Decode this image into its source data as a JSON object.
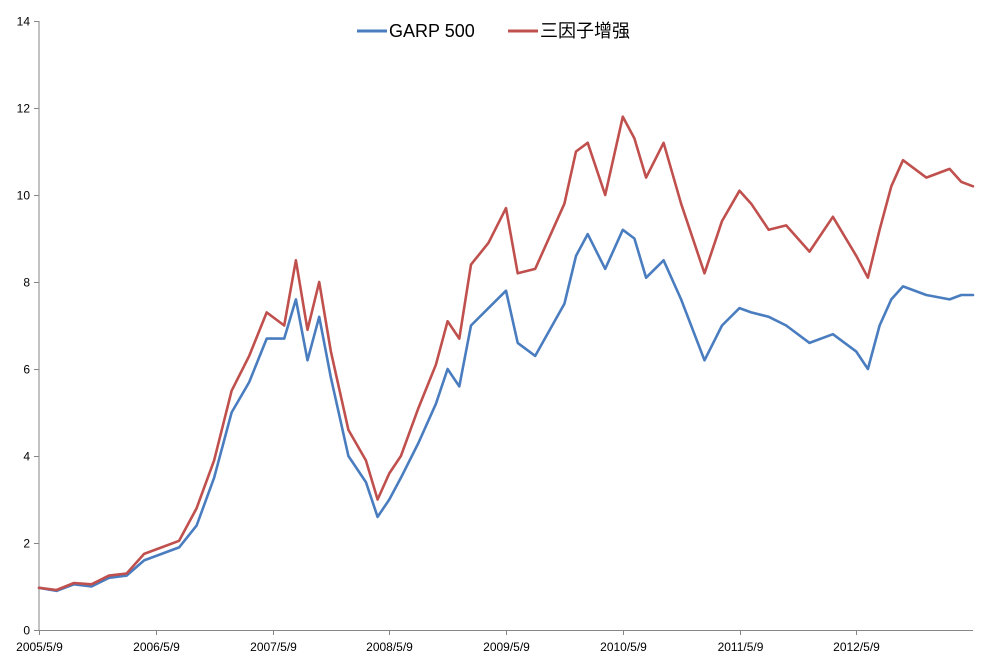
{
  "chart_data": {
    "type": "line",
    "title": "",
    "xlabel": "",
    "ylabel": "",
    "ylim": [
      0,
      14
    ],
    "yticks": [
      0,
      2,
      4,
      6,
      8,
      10,
      12,
      14
    ],
    "xticks": [
      "2005/5/9",
      "2006/5/9",
      "2007/5/9",
      "2008/5/9",
      "2009/5/9",
      "2010/5/9",
      "2011/5/9",
      "2012/5/9"
    ],
    "x_range_years": [
      0,
      8
    ],
    "legend_position": "top-center",
    "grid": false,
    "series": [
      {
        "name": "GARP 500",
        "color": "#4a7dbf",
        "t": [
          0.0,
          0.15,
          0.3,
          0.45,
          0.6,
          0.75,
          0.9,
          1.05,
          1.2,
          1.35,
          1.5,
          1.65,
          1.8,
          1.95,
          2.1,
          2.2,
          2.3,
          2.4,
          2.5,
          2.65,
          2.8,
          2.9,
          3.0,
          3.1,
          3.25,
          3.4,
          3.5,
          3.6,
          3.7,
          3.85,
          4.0,
          4.1,
          4.25,
          4.5,
          4.6,
          4.7,
          4.85,
          5.0,
          5.1,
          5.2,
          5.35,
          5.5,
          5.7,
          5.85,
          6.0,
          6.1,
          6.25,
          6.4,
          6.6,
          6.8,
          7.0,
          7.1,
          7.2,
          7.3,
          7.4,
          7.6,
          7.8,
          7.9,
          8.0
        ],
        "values": [
          0.97,
          0.9,
          1.05,
          1.0,
          1.2,
          1.25,
          1.6,
          1.75,
          1.9,
          2.4,
          3.5,
          5.0,
          5.7,
          6.7,
          6.7,
          7.6,
          6.2,
          7.2,
          5.8,
          4.0,
          3.4,
          2.6,
          3.0,
          3.5,
          4.3,
          5.2,
          6.0,
          5.6,
          7.0,
          7.4,
          7.8,
          6.6,
          6.3,
          7.5,
          8.6,
          9.1,
          8.3,
          9.2,
          9.0,
          8.1,
          8.5,
          7.6,
          6.2,
          7.0,
          7.4,
          7.3,
          7.2,
          7.0,
          6.6,
          6.8,
          6.4,
          6.0,
          7.0,
          7.6,
          7.9,
          7.7,
          7.6,
          7.7,
          7.7
        ]
      },
      {
        "name": "三因子增强",
        "color": "#c0504d",
        "t": [
          0.0,
          0.15,
          0.3,
          0.45,
          0.6,
          0.75,
          0.9,
          1.05,
          1.2,
          1.35,
          1.5,
          1.65,
          1.8,
          1.95,
          2.1,
          2.2,
          2.3,
          2.4,
          2.5,
          2.65,
          2.8,
          2.9,
          3.0,
          3.1,
          3.25,
          3.4,
          3.5,
          3.6,
          3.7,
          3.85,
          4.0,
          4.1,
          4.25,
          4.5,
          4.6,
          4.7,
          4.85,
          5.0,
          5.1,
          5.2,
          5.35,
          5.5,
          5.7,
          5.85,
          6.0,
          6.1,
          6.25,
          6.4,
          6.6,
          6.8,
          7.0,
          7.1,
          7.2,
          7.3,
          7.4,
          7.6,
          7.8,
          7.9,
          8.0
        ],
        "values": [
          0.97,
          0.92,
          1.08,
          1.05,
          1.25,
          1.3,
          1.75,
          1.9,
          2.05,
          2.8,
          3.9,
          5.5,
          6.3,
          7.3,
          7.0,
          8.5,
          6.9,
          8.0,
          6.4,
          4.6,
          3.9,
          3.0,
          3.6,
          4.0,
          5.1,
          6.1,
          7.1,
          6.7,
          8.4,
          8.9,
          9.7,
          8.2,
          8.3,
          9.8,
          11.0,
          11.2,
          10.0,
          11.8,
          11.3,
          10.4,
          11.2,
          9.8,
          8.2,
          9.4,
          10.1,
          9.8,
          9.2,
          9.3,
          8.7,
          9.5,
          8.6,
          8.1,
          9.2,
          10.2,
          10.8,
          10.4,
          10.6,
          10.3,
          10.2
        ]
      }
    ]
  }
}
